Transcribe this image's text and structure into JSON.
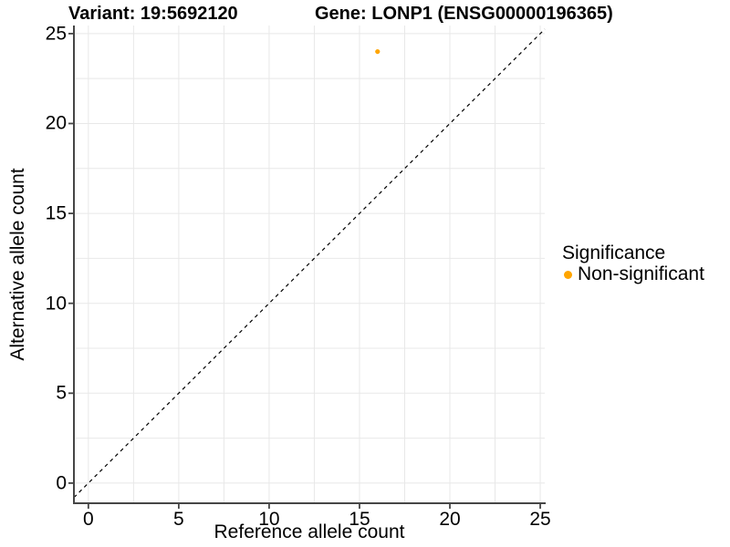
{
  "titles": {
    "left": "Variant: 19:5692120",
    "right": "Gene: LONP1 (ENSG00000196365)"
  },
  "axes": {
    "x": {
      "title": "Reference allele count",
      "ticks": [
        0,
        5,
        10,
        15,
        20,
        25
      ],
      "range": [
        -0.8,
        25.25
      ],
      "minor_step": 2.5
    },
    "y": {
      "title": "Alternative allele count",
      "ticks": [
        0,
        5,
        10,
        15,
        20,
        25
      ],
      "range": [
        -1.12,
        25.45
      ],
      "minor_step": 2.5
    }
  },
  "legend": {
    "title": "Significance",
    "items": [
      {
        "label": "Non-significant",
        "color": "#FFA500"
      }
    ]
  },
  "chart_data": {
    "type": "scatter",
    "title": "Variant: 19:5692120 | Gene: LONP1 (ENSG00000196365)",
    "xlabel": "Reference allele count",
    "ylabel": "Alternative allele count",
    "xlim": [
      0,
      25
    ],
    "ylim": [
      0,
      25
    ],
    "x_ticks": [
      0,
      5,
      10,
      15,
      20,
      25
    ],
    "y_ticks": [
      0,
      5,
      10,
      15,
      20,
      25
    ],
    "grid": "major and minor (every 2.5), light gray on white",
    "legend_position": "right",
    "series": [
      {
        "name": "Non-significant",
        "color": "#FFA500",
        "points": [
          {
            "x": 16,
            "y": 24
          }
        ]
      }
    ],
    "reference_line": {
      "style": "dashed",
      "color": "#000000",
      "equation": "y = x"
    }
  },
  "colors": {
    "point": "#FFA500",
    "grid": "#E8E8E8",
    "axis": "#464646",
    "text": "#000000",
    "background": "#FFFFFF"
  }
}
